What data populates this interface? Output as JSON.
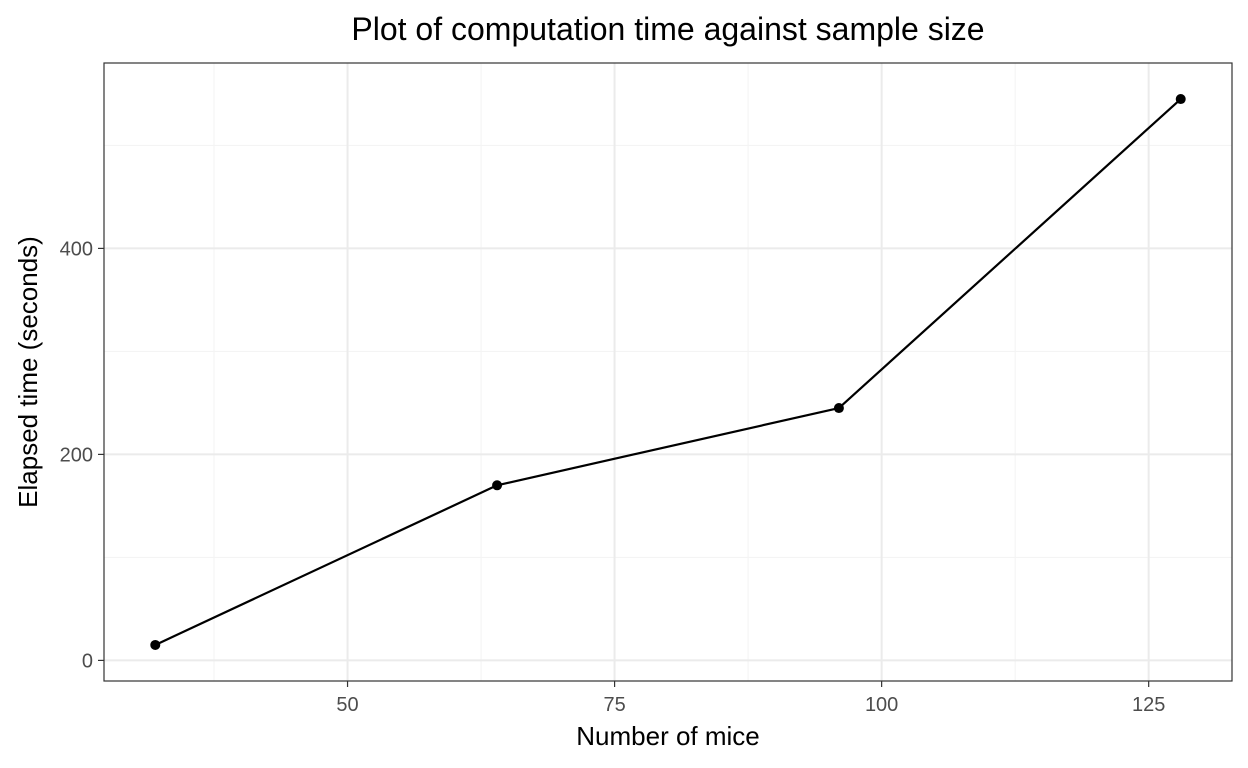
{
  "chart_data": {
    "type": "line",
    "title": "Plot of computation time against sample size",
    "xlabel": "Number of mice",
    "ylabel": "Elapsed time (seconds)",
    "x": [
      32,
      64,
      96,
      128
    ],
    "series": [
      {
        "values": [
          15,
          170,
          245,
          545
        ]
      }
    ],
    "xlim": [
      27.2,
      132.8
    ],
    "ylim": [
      -20,
      580
    ],
    "x_major_ticks": [
      50,
      75,
      100,
      125
    ],
    "x_minor_ticks": [
      37.5,
      62.5,
      87.5,
      112.5
    ],
    "y_major_ticks": [
      0,
      200,
      400
    ],
    "y_minor_ticks": [
      100,
      300,
      500
    ],
    "x_tick_labels": [
      "50",
      "75",
      "100",
      "125"
    ],
    "y_tick_labels": [
      "0",
      "200",
      "400"
    ],
    "grid": true,
    "legend": "none",
    "colors": {
      "line": "#000000",
      "point": "#000000",
      "panel_border": "#333333",
      "grid_major": "#ebebeb",
      "grid_minor": "#f3f3f3",
      "tick_text": "#4d4d4d",
      "background": "#ffffff"
    }
  }
}
